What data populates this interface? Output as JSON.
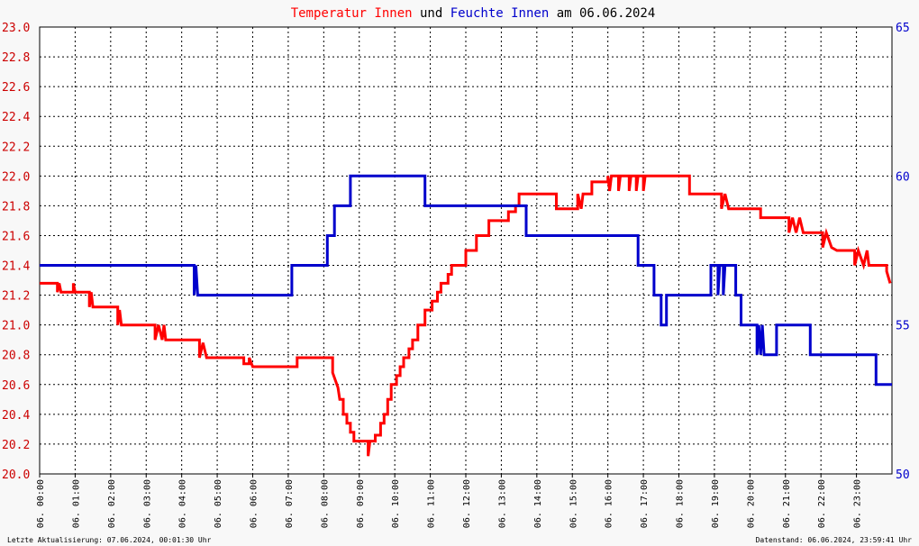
{
  "title": {
    "parts": [
      {
        "text": "Temperatur Innen",
        "color": "#ff0000"
      },
      {
        "text": " und ",
        "color": "#000000"
      },
      {
        "text": "Feuchte Innen",
        "color": "#0000cc"
      },
      {
        "text": " am 06.06.2024",
        "color": "#000000"
      }
    ]
  },
  "footer": {
    "left": "Letzte Aktualisierung: 07.06.2024, 00:01:30 Uhr",
    "right": "Datenstand: 06.06.2024, 23:59:41 Uhr"
  },
  "chart_data": {
    "type": "line",
    "title": "Temperatur Innen und Feuchte Innen am 06.06.2024",
    "x_unit": "hours",
    "xlim": [
      0,
      24
    ],
    "x_ticks": [
      {
        "hour": 0,
        "label": "06. 00:00"
      },
      {
        "hour": 1,
        "label": "06. 01:00"
      },
      {
        "hour": 2,
        "label": "06. 02:00"
      },
      {
        "hour": 3,
        "label": "06. 03:00"
      },
      {
        "hour": 4,
        "label": "06. 04:00"
      },
      {
        "hour": 5,
        "label": "06. 05:00"
      },
      {
        "hour": 6,
        "label": "06. 06:00"
      },
      {
        "hour": 7,
        "label": "06. 07:00"
      },
      {
        "hour": 8,
        "label": "06. 08:00"
      },
      {
        "hour": 9,
        "label": "06. 09:00"
      },
      {
        "hour": 10,
        "label": "06. 10:00"
      },
      {
        "hour": 11,
        "label": "06. 11:00"
      },
      {
        "hour": 12,
        "label": "06. 12:00"
      },
      {
        "hour": 13,
        "label": "06. 13:00"
      },
      {
        "hour": 14,
        "label": "06. 14:00"
      },
      {
        "hour": 15,
        "label": "06. 15:00"
      },
      {
        "hour": 16,
        "label": "06. 16:00"
      },
      {
        "hour": 17,
        "label": "06. 17:00"
      },
      {
        "hour": 18,
        "label": "06. 18:00"
      },
      {
        "hour": 19,
        "label": "06. 19:00"
      },
      {
        "hour": 20,
        "label": "06. 20:00"
      },
      {
        "hour": 21,
        "label": "06. 21:00"
      },
      {
        "hour": 22,
        "label": "06. 22:00"
      },
      {
        "hour": 23,
        "label": "06. 23:00"
      }
    ],
    "y_left": {
      "lim": [
        20.0,
        23.0
      ],
      "ticks": [
        "20.0",
        "20.2",
        "20.4",
        "20.6",
        "20.8",
        "21.0",
        "21.2",
        "21.4",
        "21.6",
        "21.8",
        "22.0",
        "22.2",
        "22.4",
        "22.6",
        "22.8",
        "23.0"
      ],
      "color": "#cc0000"
    },
    "y_right": {
      "lim": [
        50,
        65
      ],
      "ticks": [
        "50",
        "55",
        "60",
        "65"
      ],
      "color": "#0000cc"
    },
    "grid": true,
    "series": [
      {
        "name": "Temperatur Innen",
        "axis": "left",
        "color": "#ff0000",
        "step": true,
        "points": [
          [
            0.0,
            21.28
          ],
          [
            0.5,
            21.28
          ],
          [
            0.5,
            21.22
          ],
          [
            0.55,
            21.28
          ],
          [
            0.6,
            21.22
          ],
          [
            0.95,
            21.22
          ],
          [
            0.95,
            21.28
          ],
          [
            1.0,
            21.22
          ],
          [
            1.4,
            21.22
          ],
          [
            1.4,
            21.12
          ],
          [
            1.45,
            21.22
          ],
          [
            1.5,
            21.12
          ],
          [
            2.2,
            21.12
          ],
          [
            2.2,
            21.0
          ],
          [
            2.25,
            21.1
          ],
          [
            2.3,
            21.0
          ],
          [
            3.25,
            21.0
          ],
          [
            3.25,
            20.9
          ],
          [
            3.35,
            21.0
          ],
          [
            3.45,
            20.9
          ],
          [
            3.5,
            21.0
          ],
          [
            3.55,
            20.9
          ],
          [
            4.5,
            20.9
          ],
          [
            4.5,
            20.78
          ],
          [
            4.6,
            20.88
          ],
          [
            4.7,
            20.78
          ],
          [
            5.75,
            20.78
          ],
          [
            5.75,
            20.74
          ],
          [
            5.9,
            20.74
          ],
          [
            5.9,
            20.78
          ],
          [
            6.0,
            20.72
          ],
          [
            7.25,
            20.72
          ],
          [
            7.25,
            20.78
          ],
          [
            8.25,
            20.78
          ],
          [
            8.25,
            20.68
          ],
          [
            8.4,
            20.58
          ],
          [
            8.45,
            20.5
          ],
          [
            8.55,
            20.5
          ],
          [
            8.55,
            20.4
          ],
          [
            8.65,
            20.4
          ],
          [
            8.65,
            20.34
          ],
          [
            8.75,
            20.34
          ],
          [
            8.75,
            20.28
          ],
          [
            8.85,
            20.28
          ],
          [
            8.85,
            20.22
          ],
          [
            9.25,
            20.22
          ],
          [
            9.25,
            20.12
          ],
          [
            9.3,
            20.22
          ],
          [
            9.45,
            20.22
          ],
          [
            9.45,
            20.26
          ],
          [
            9.6,
            20.26
          ],
          [
            9.6,
            20.34
          ],
          [
            9.7,
            20.34
          ],
          [
            9.7,
            20.4
          ],
          [
            9.8,
            20.4
          ],
          [
            9.8,
            20.5
          ],
          [
            9.9,
            20.5
          ],
          [
            9.9,
            20.6
          ],
          [
            10.05,
            20.6
          ],
          [
            10.05,
            20.66
          ],
          [
            10.15,
            20.66
          ],
          [
            10.15,
            20.72
          ],
          [
            10.25,
            20.72
          ],
          [
            10.25,
            20.78
          ],
          [
            10.4,
            20.78
          ],
          [
            10.4,
            20.84
          ],
          [
            10.5,
            20.84
          ],
          [
            10.5,
            20.9
          ],
          [
            10.65,
            20.9
          ],
          [
            10.65,
            21.0
          ],
          [
            10.85,
            21.0
          ],
          [
            10.85,
            21.1
          ],
          [
            11.05,
            21.1
          ],
          [
            11.05,
            21.16
          ],
          [
            11.2,
            21.16
          ],
          [
            11.2,
            21.22
          ],
          [
            11.3,
            21.22
          ],
          [
            11.3,
            21.28
          ],
          [
            11.5,
            21.28
          ],
          [
            11.5,
            21.34
          ],
          [
            11.6,
            21.34
          ],
          [
            11.6,
            21.4
          ],
          [
            12.0,
            21.4
          ],
          [
            12.0,
            21.5
          ],
          [
            12.3,
            21.5
          ],
          [
            12.3,
            21.6
          ],
          [
            12.65,
            21.6
          ],
          [
            12.65,
            21.7
          ],
          [
            13.2,
            21.7
          ],
          [
            13.2,
            21.76
          ],
          [
            13.4,
            21.76
          ],
          [
            13.4,
            21.8
          ],
          [
            13.5,
            21.8
          ],
          [
            13.5,
            21.88
          ],
          [
            14.55,
            21.88
          ],
          [
            14.55,
            21.78
          ],
          [
            15.15,
            21.78
          ],
          [
            15.15,
            21.88
          ],
          [
            15.25,
            21.78
          ],
          [
            15.3,
            21.88
          ],
          [
            15.55,
            21.88
          ],
          [
            15.55,
            21.96
          ],
          [
            16.0,
            21.96
          ],
          [
            16.0,
            22.0
          ],
          [
            16.05,
            21.9
          ],
          [
            16.1,
            22.0
          ],
          [
            16.3,
            22.0
          ],
          [
            16.3,
            21.9
          ],
          [
            16.35,
            22.0
          ],
          [
            16.6,
            22.0
          ],
          [
            16.6,
            21.9
          ],
          [
            16.65,
            22.0
          ],
          [
            16.8,
            22.0
          ],
          [
            16.8,
            21.9
          ],
          [
            16.85,
            22.0
          ],
          [
            17.0,
            22.0
          ],
          [
            17.0,
            21.9
          ],
          [
            17.05,
            22.0
          ],
          [
            18.3,
            22.0
          ],
          [
            18.3,
            21.88
          ],
          [
            19.2,
            21.88
          ],
          [
            19.2,
            21.78
          ],
          [
            19.3,
            21.88
          ],
          [
            19.4,
            21.78
          ],
          [
            20.3,
            21.78
          ],
          [
            20.3,
            21.72
          ],
          [
            20.5,
            21.72
          ],
          [
            21.1,
            21.72
          ],
          [
            21.1,
            21.62
          ],
          [
            21.2,
            21.72
          ],
          [
            21.3,
            21.62
          ],
          [
            21.4,
            21.72
          ],
          [
            21.5,
            21.62
          ],
          [
            22.05,
            21.62
          ],
          [
            22.05,
            21.52
          ],
          [
            22.15,
            21.62
          ],
          [
            22.3,
            21.52
          ],
          [
            22.45,
            21.5
          ],
          [
            22.95,
            21.5
          ],
          [
            22.95,
            21.4
          ],
          [
            23.05,
            21.5
          ],
          [
            23.2,
            21.4
          ],
          [
            23.3,
            21.5
          ],
          [
            23.35,
            21.4
          ],
          [
            23.85,
            21.4
          ],
          [
            23.85,
            21.36
          ],
          [
            23.95,
            21.28
          ]
        ]
      },
      {
        "name": "Feuchte Innen",
        "axis": "right",
        "color": "#0000cc",
        "step": true,
        "points": [
          [
            0.0,
            57.0
          ],
          [
            4.35,
            57.0
          ],
          [
            4.35,
            56.0
          ],
          [
            4.4,
            57.0
          ],
          [
            4.45,
            56.0
          ],
          [
            7.1,
            56.0
          ],
          [
            7.1,
            57.0
          ],
          [
            8.1,
            57.0
          ],
          [
            8.1,
            58.0
          ],
          [
            8.3,
            58.0
          ],
          [
            8.3,
            59.0
          ],
          [
            8.75,
            59.0
          ],
          [
            8.75,
            60.0
          ],
          [
            10.85,
            60.0
          ],
          [
            10.85,
            59.0
          ],
          [
            13.7,
            59.0
          ],
          [
            13.7,
            58.0
          ],
          [
            16.85,
            58.0
          ],
          [
            16.85,
            57.0
          ],
          [
            17.3,
            57.0
          ],
          [
            17.3,
            56.0
          ],
          [
            17.5,
            56.0
          ],
          [
            17.5,
            55.0
          ],
          [
            17.65,
            55.0
          ],
          [
            17.65,
            56.0
          ],
          [
            18.9,
            56.0
          ],
          [
            18.9,
            57.0
          ],
          [
            19.1,
            57.0
          ],
          [
            19.1,
            56.0
          ],
          [
            19.15,
            57.0
          ],
          [
            19.25,
            57.0
          ],
          [
            19.25,
            56.0
          ],
          [
            19.3,
            57.0
          ],
          [
            19.6,
            57.0
          ],
          [
            19.6,
            56.0
          ],
          [
            19.75,
            56.0
          ],
          [
            19.75,
            55.0
          ],
          [
            20.2,
            55.0
          ],
          [
            20.2,
            54.0
          ],
          [
            20.25,
            55.0
          ],
          [
            20.3,
            54.0
          ],
          [
            20.35,
            55.0
          ],
          [
            20.4,
            54.0
          ],
          [
            20.75,
            54.0
          ],
          [
            20.75,
            55.0
          ],
          [
            21.7,
            55.0
          ],
          [
            21.7,
            54.0
          ],
          [
            23.55,
            54.0
          ],
          [
            23.55,
            53.0
          ],
          [
            24.0,
            53.0
          ]
        ]
      }
    ]
  }
}
